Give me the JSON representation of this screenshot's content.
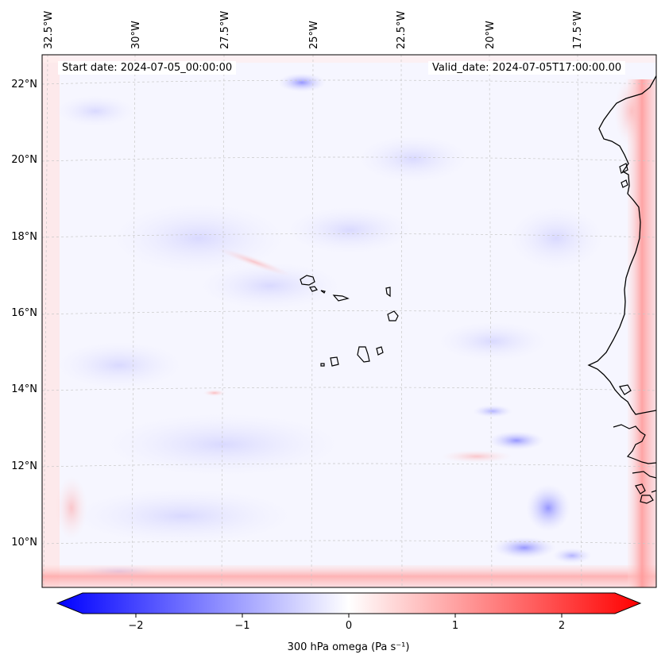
{
  "map": {
    "lon_labels": [
      "32.5°W",
      "30°W",
      "27.5°W",
      "25°W",
      "22.5°W",
      "20°W",
      "17.5°W"
    ],
    "lat_labels": [
      "22°N",
      "20°N",
      "18°N",
      "16°N",
      "14°N",
      "12°N",
      "10°N"
    ],
    "start_date": "Start date: 2024-07-05_00:00:00",
    "valid_date": "Valid_date: 2024-07-05T17:00:00.00",
    "field": "300 hPa omega",
    "units": "Pa s⁻¹"
  },
  "colorbar": {
    "ticks": [
      "−2",
      "−1",
      "0",
      "1",
      "2"
    ],
    "tick_values": [
      -2,
      -1,
      0,
      1,
      2
    ],
    "range": [
      -2.5,
      2.5
    ],
    "label": "300 hPa omega (Pa s⁻¹)",
    "colormap": "bwr",
    "low_color": "#0000ff",
    "mid_color": "#ffffff",
    "high_color": "#ff0000"
  },
  "colors": {
    "coastline": "#000000",
    "gridline": "#c8c8c8"
  }
}
